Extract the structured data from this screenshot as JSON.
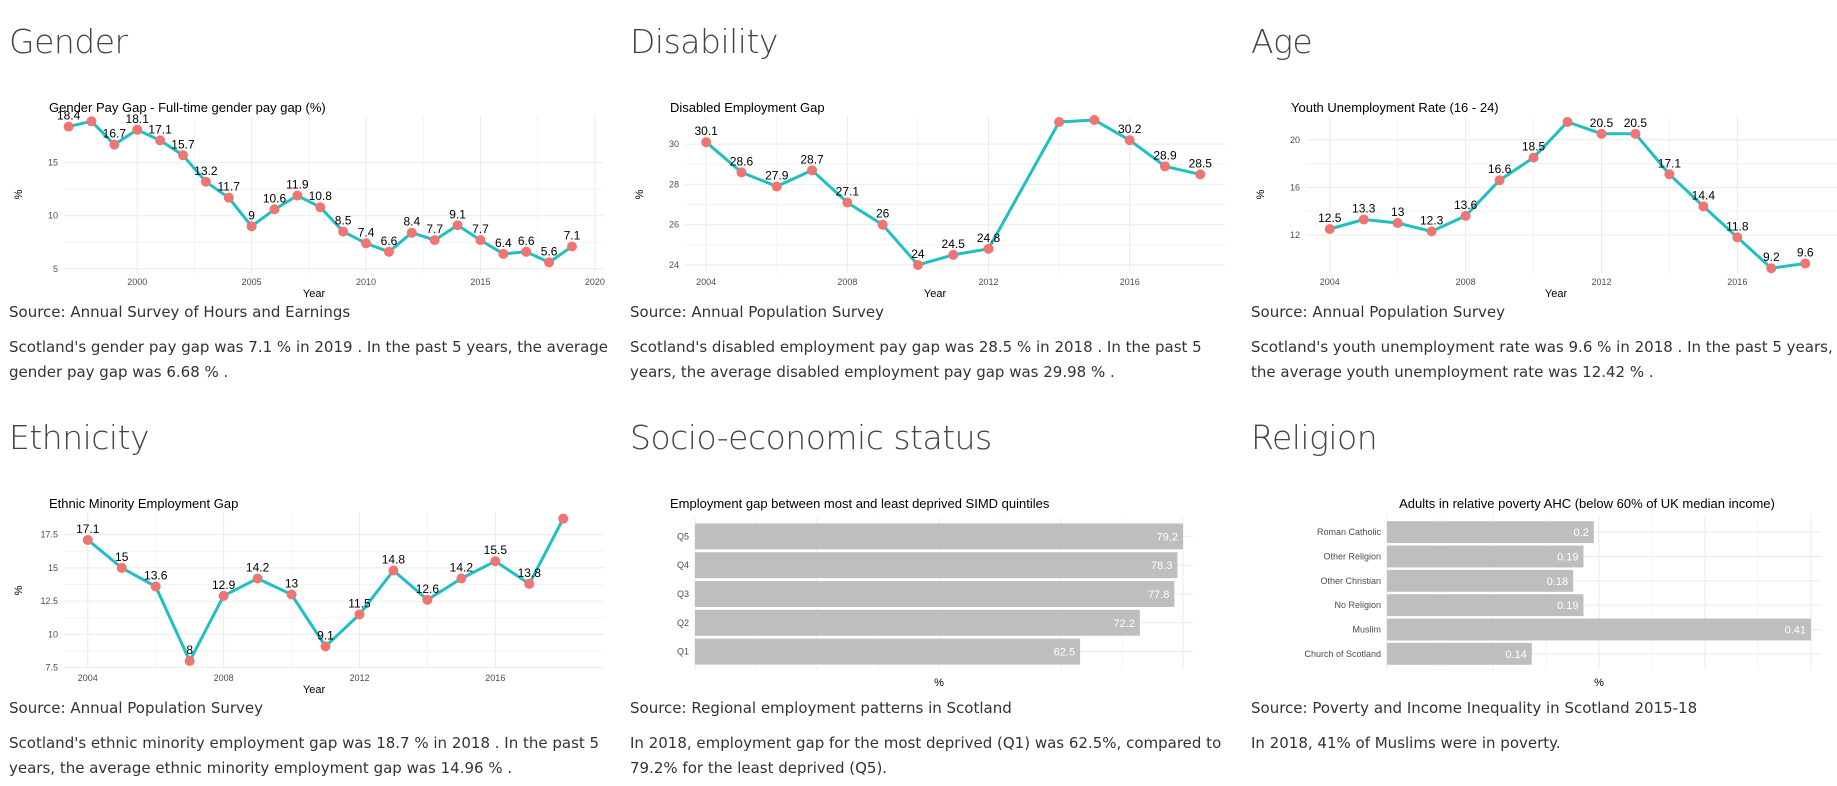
{
  "panels": {
    "gender": {
      "heading": "Gender",
      "source": "Source: Annual Survey of Hours and Earnings",
      "summary": {
        "p1": "Scotland's gender pay gap was ",
        "v1": "7.1 %",
        "p2": " in 2019 . In the past 5 years, the average gender pay gap was ",
        "v2": "6.68 %",
        "p3": " ."
      }
    },
    "disability": {
      "heading": "Disability",
      "source": "Source: Annual Population Survey",
      "summary": {
        "p1": "Scotland's disabled employment pay gap was ",
        "v1": "28.5 %",
        "p2": " in 2018 . In the past 5 years, the average disabled employment pay gap was ",
        "v2": "29.98 %",
        "p3": " ."
      }
    },
    "age": {
      "heading": "Age",
      "source": "Source: Annual Population Survey",
      "summary": {
        "p1": "Scotland's youth unemployment rate was ",
        "v1": "9.6 %",
        "p2": " in 2018 . In the past 5 years, the average youth unemployment rate was ",
        "v2": "12.42 %",
        "p3": " ."
      }
    },
    "ethnicity": {
      "heading": "Ethnicity",
      "source": "Source: Annual Population Survey",
      "summary": {
        "p1": "Scotland's ethnic minority employment gap was ",
        "v1": "18.7 %",
        "p2": " in 2018 . In the past 5 years, the average ethnic minority employment gap was ",
        "v2": "14.96 %",
        "p3": " ."
      }
    },
    "socio": {
      "heading": "Socio-economic status",
      "source": "Source: Regional employment patterns in Scotland",
      "summary": {
        "p1": "In 2018, employment gap for the most deprived (Q1) was 62.5%, compared to 79.2% for the least deprived (Q5).",
        "v1": "",
        "p2": "",
        "v2": "",
        "p3": ""
      }
    },
    "religion": {
      "heading": "Religion",
      "source": "Source: Poverty and Income Inequality in Scotland 2015-18",
      "summary": {
        "p1": "In 2018, 41% of Muslims were in poverty.",
        "v1": "",
        "p2": "",
        "v2": "",
        "p3": ""
      }
    }
  },
  "colors": {
    "line": "#1fbfc3",
    "point": "#f07470",
    "bar": "#bebebe",
    "grid": "#ebebeb",
    "text": "#4d4d4d"
  },
  "chart_data": [
    {
      "type": "line",
      "title": "Gender Pay Gap - Full-time gender pay gap (%)",
      "xlabel": "Year",
      "ylabel": "%",
      "x": [
        1997,
        1998,
        1999,
        2000,
        2001,
        2002,
        2003,
        2004,
        2005,
        2006,
        2007,
        2008,
        2009,
        2010,
        2011,
        2012,
        2013,
        2014,
        2015,
        2016,
        2017,
        2018,
        2019
      ],
      "y": [
        18.4,
        18.9,
        16.7,
        18.1,
        17.1,
        15.7,
        13.2,
        11.7,
        9,
        10.6,
        11.9,
        10.8,
        8.5,
        7.4,
        6.6,
        8.4,
        7.7,
        9.1,
        7.7,
        6.4,
        6.6,
        5.6,
        7.1
      ],
      "labels": [
        "18.4",
        "",
        "16.7",
        "18.1",
        "17.1",
        "15.7",
        "13.2",
        "11.7",
        "9",
        "10.6",
        "11.9",
        "10.8",
        "8.5",
        "7.4",
        "6.6",
        "8.4",
        "7.7",
        "9.1",
        "7.7",
        "6.4",
        "6.6",
        "5.6",
        "7.1"
      ],
      "xticks": [
        2000,
        2005,
        2010,
        2015,
        2020
      ],
      "yticks": [
        5,
        10,
        15
      ],
      "xlim": [
        1996.8,
        2020.4
      ],
      "ylim": [
        4.6,
        19.4
      ]
    },
    {
      "type": "line",
      "title": "Disabled Employment Gap",
      "xlabel": "Year",
      "ylabel": "%",
      "x": [
        2004,
        2005,
        2006,
        2007,
        2008,
        2009,
        2010,
        2011,
        2012,
        2014,
        2015,
        2016,
        2017,
        2018
      ],
      "y": [
        30.1,
        28.6,
        27.9,
        28.7,
        27.1,
        26,
        24,
        24.5,
        24.8,
        31.1,
        31.2,
        30.2,
        28.9,
        28.5
      ],
      "labels": [
        "30.1",
        "28.6",
        "27.9",
        "28.7",
        "27.1",
        "26",
        "24",
        "24.5",
        "24.8",
        "",
        "",
        "30.2",
        "28.9",
        "28.5"
      ],
      "xticks": [
        2004,
        2008,
        2012,
        2016
      ],
      "yticks": [
        24,
        26,
        28,
        30
      ],
      "xlim": [
        2003.4,
        2018.7
      ],
      "ylim": [
        23.6,
        31.4
      ]
    },
    {
      "type": "line",
      "title": "Youth Unemployment Rate (16 - 24)",
      "xlabel": "Year",
      "ylabel": "%",
      "x": [
        2004,
        2005,
        2006,
        2007,
        2008,
        2009,
        2010,
        2011,
        2012,
        2013,
        2014,
        2015,
        2016,
        2017,
        2018
      ],
      "y": [
        12.5,
        13.3,
        13,
        12.3,
        13.6,
        16.6,
        18.5,
        21.5,
        20.5,
        20.5,
        17.1,
        14.4,
        11.8,
        9.2,
        9.6
      ],
      "labels": [
        "12.5",
        "13.3",
        "13",
        "12.3",
        "13.6",
        "16.6",
        "18.5",
        "",
        "20.5",
        "20.5",
        "17.1",
        "14.4",
        "11.8",
        "9.2",
        "9.6"
      ],
      "xticks": [
        2004,
        2008,
        2012,
        2016
      ],
      "yticks": [
        12,
        16,
        20
      ],
      "xlim": [
        2003.3,
        2019.2
      ],
      "ylim": [
        8.8,
        22.0
      ]
    },
    {
      "type": "line",
      "title": "Ethnic Minority Employment Gap",
      "xlabel": "Year",
      "ylabel": "%",
      "x": [
        2004,
        2005,
        2006,
        2007,
        2008,
        2009,
        2010,
        2011,
        2012,
        2013,
        2014,
        2015,
        2016,
        2017,
        2018
      ],
      "y": [
        17.1,
        15,
        13.6,
        8,
        12.9,
        14.2,
        13,
        9.1,
        11.5,
        14.8,
        12.6,
        14.2,
        15.5,
        13.8,
        18.7
      ],
      "labels": [
        "17.1",
        "15",
        "13.6",
        "8",
        "12.9",
        "14.2",
        "13",
        "9.1",
        "11.5",
        "14.8",
        "12.6",
        "14.2",
        "15.5",
        "13.8",
        ""
      ],
      "xticks": [
        2004,
        2008,
        2012,
        2016
      ],
      "yticks": [
        7.5,
        10,
        12.5,
        15,
        17.5
      ],
      "xlim": [
        2003.3,
        2019.2
      ],
      "ylim": [
        7.4,
        19.2
      ]
    },
    {
      "type": "bar",
      "orientation": "horizontal",
      "title": "Employment gap between most and least deprived SIMD quintiles",
      "xlabel": "%",
      "ylabel": "",
      "categories": [
        "Q5",
        "Q4",
        "Q3",
        "Q2",
        "Q1"
      ],
      "values": [
        79.2,
        78.3,
        77.8,
        72.2,
        62.5
      ],
      "xlim": [
        0,
        79.2
      ]
    },
    {
      "type": "bar",
      "orientation": "horizontal",
      "title": "Adults in relative poverty AHC (below 60% of UK median income)",
      "xlabel": "%",
      "ylabel": "",
      "categories": [
        "Roman Catholic",
        "Other Religion",
        "Other Christian",
        "No Religion",
        "Muslim",
        "Church of Scotland"
      ],
      "values": [
        0.2,
        0.19,
        0.18,
        0.19,
        0.41,
        0.14
      ],
      "xlim": [
        0,
        0.41
      ]
    }
  ]
}
